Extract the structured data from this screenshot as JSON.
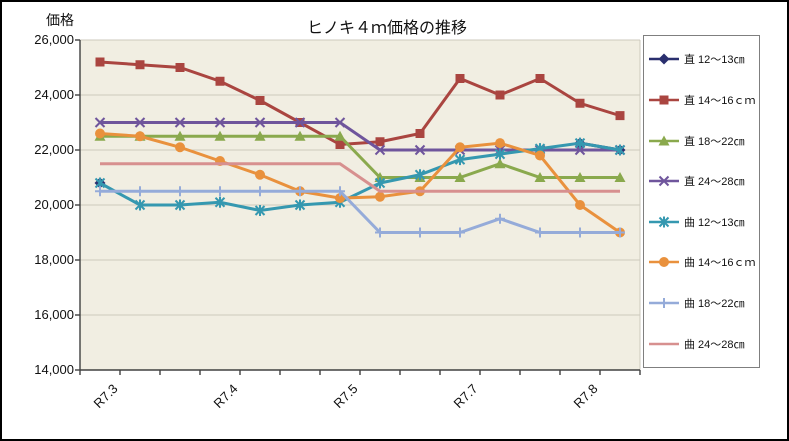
{
  "chart_data": {
    "type": "line",
    "title": "ヒノキ４ｍ価格の推移",
    "y_axis_title": "価格",
    "ylim": [
      14000,
      26000
    ],
    "y_ticks": [
      26000,
      24000,
      22000,
      20000,
      18000,
      16000,
      14000
    ],
    "y_tick_labels": [
      "26,000",
      "24,000",
      "22,000",
      "20,000",
      "18,000",
      "16,000",
      "14,000"
    ],
    "x_point_count": 14,
    "x_tick_labels": [
      "R7.3",
      "R7.4",
      "R7.5",
      "R7.7",
      "R7.8"
    ],
    "x_label_indices": [
      0,
      3,
      6,
      9,
      12
    ],
    "grid": true,
    "legend_position": "right",
    "colors": {
      "plot_background": "#F1EEE2",
      "gridline": "#CDC9BC",
      "axis": "#404040",
      "legend_border": "#7F7F7F"
    },
    "series": [
      {
        "name": "直 12～13㎝",
        "color": "#2A2F6E",
        "marker": "diamond",
        "values": [
          20800,
          null,
          null,
          null,
          null,
          null,
          null,
          null,
          null,
          null,
          null,
          null,
          22250,
          22000
        ]
      },
      {
        "name": "直 14～16ｃｍ",
        "color": "#AA4540",
        "marker": "square",
        "values": [
          25200,
          25100,
          25000,
          24500,
          23800,
          23000,
          22200,
          22300,
          22600,
          24600,
          24000,
          24600,
          23700,
          23250
        ]
      },
      {
        "name": "直 18～22㎝",
        "color": "#8AA94D",
        "marker": "triangle",
        "values": [
          22500,
          22500,
          22500,
          22500,
          22500,
          22500,
          22500,
          21000,
          21000,
          21000,
          21500,
          21000,
          21000,
          21000
        ]
      },
      {
        "name": "直 24～28㎝",
        "color": "#6F559C",
        "marker": "x",
        "values": [
          23000,
          23000,
          23000,
          23000,
          23000,
          23000,
          23000,
          22000,
          22000,
          22000,
          22000,
          22000,
          22000,
          22000
        ]
      },
      {
        "name": "曲 12～13㎝",
        "color": "#3598B0",
        "marker": "asterisk",
        "values": [
          20800,
          20000,
          20000,
          20100,
          19800,
          20000,
          20100,
          20800,
          21100,
          21650,
          21850,
          22050,
          22250,
          22000
        ]
      },
      {
        "name": "曲 14～16ｃｍ",
        "color": "#E9913D",
        "marker": "circle",
        "values": [
          22600,
          22500,
          22100,
          21600,
          21100,
          20500,
          20250,
          20300,
          20500,
          22100,
          22250,
          21800,
          20000,
          19000
        ]
      },
      {
        "name": "曲 18～22㎝",
        "color": "#95ABD9",
        "marker": "plus",
        "values": [
          20500,
          20500,
          20500,
          20500,
          20500,
          20500,
          20500,
          19000,
          19000,
          19000,
          19500,
          19000,
          19000,
          19000
        ]
      },
      {
        "name": "曲 24～28㎝",
        "color": "#D7908F",
        "marker": "none",
        "values": [
          21500,
          21500,
          21500,
          21500,
          21500,
          21500,
          21500,
          20500,
          20500,
          20500,
          20500,
          20500,
          20500,
          20500
        ]
      }
    ]
  }
}
